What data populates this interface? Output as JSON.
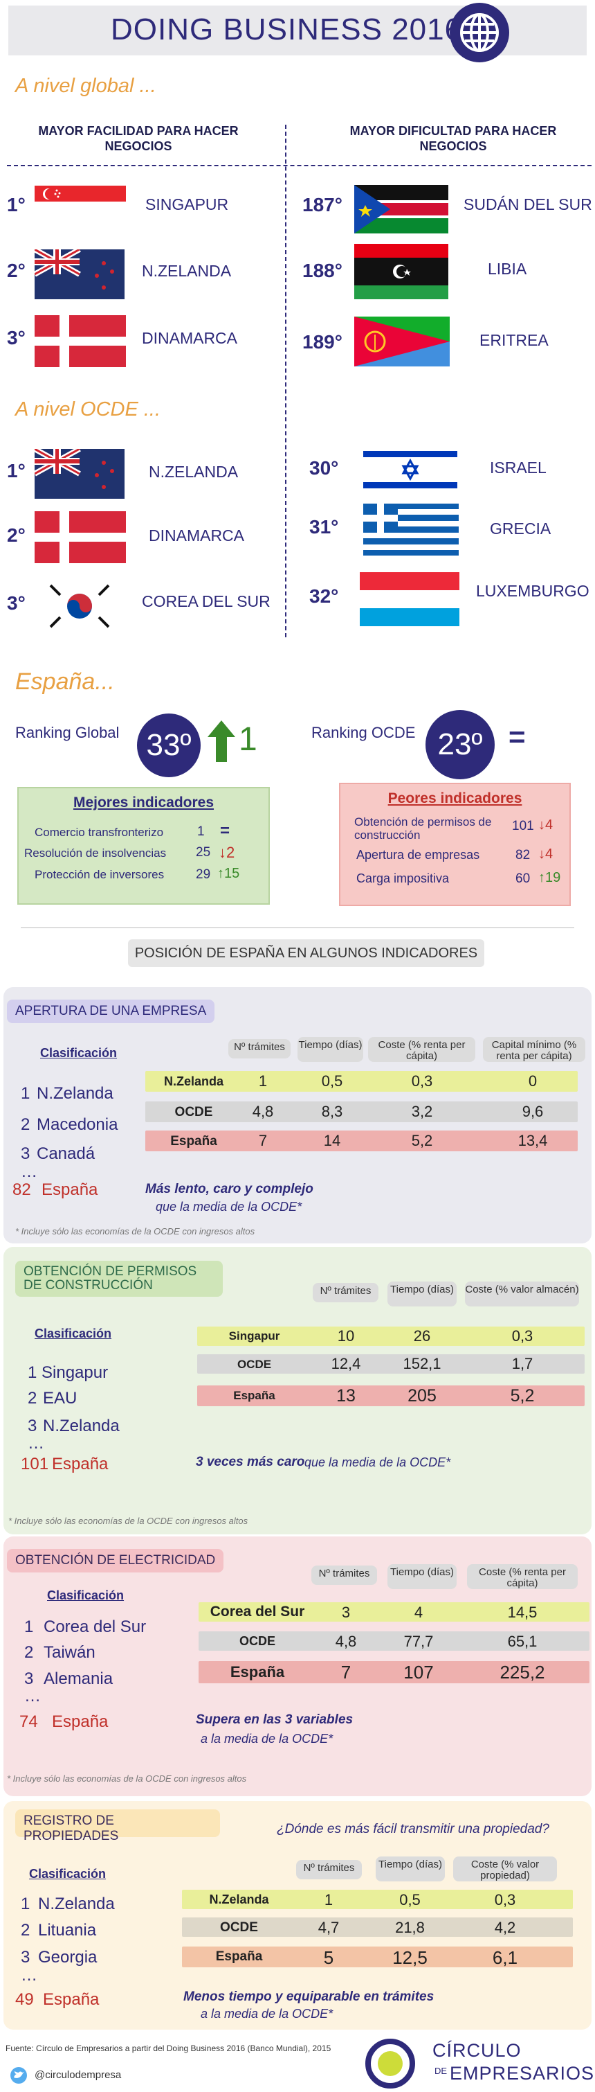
{
  "header": {
    "title": "DOING BUSINESS 2016"
  },
  "global": {
    "heading": "A nivel global ...",
    "best_title": "MAYOR FACILIDAD PARA HACER NEGOCIOS",
    "worst_title": "MAYOR DIFICULTAD PARA HACER NEGOCIOS",
    "best": [
      {
        "rank": "1°",
        "country": "SINGAPUR"
      },
      {
        "rank": "2°",
        "country": "N.ZELANDA"
      },
      {
        "rank": "3°",
        "country": "DINAMARCA"
      }
    ],
    "worst": [
      {
        "rank": "187°",
        "country": "SUDÁN DEL SUR"
      },
      {
        "rank": "188°",
        "country": "LIBIA"
      },
      {
        "rank": "189°",
        "country": "ERITREA"
      }
    ]
  },
  "ocde": {
    "heading": "A nivel OCDE ...",
    "best": [
      {
        "rank": "1°",
        "country": "N.ZELANDA"
      },
      {
        "rank": "2°",
        "country": "DINAMARCA"
      },
      {
        "rank": "3°",
        "country": "COREA DEL SUR"
      }
    ],
    "worst": [
      {
        "rank": "30°",
        "country": "ISRAEL"
      },
      {
        "rank": "31°",
        "country": "GRECIA"
      },
      {
        "rank": "32°",
        "country": "LUXEMBURGO"
      }
    ]
  },
  "spain": {
    "heading": "España...",
    "global_label": "Ranking Global",
    "global_value": "33º",
    "global_change": "1",
    "ocde_label": "Ranking OCDE",
    "ocde_value": "23º",
    "ocde_change": "=",
    "best_title": "Mejores indicadores",
    "best": [
      {
        "label": "Comercio transfronterizo",
        "value": "1",
        "change": "="
      },
      {
        "label": "Resolución de insolvencias",
        "value": "25",
        "change": "↓2"
      },
      {
        "label": "Protección de inversores",
        "value": "29",
        "change": "↑15"
      }
    ],
    "worst_title": "Peores indicadores",
    "worst": [
      {
        "label": "Obtención de permisos de construcción",
        "value": "101",
        "change": "↓4"
      },
      {
        "label": "Apertura de empresas",
        "value": "82",
        "change": "↓4"
      },
      {
        "label": "Carga impositiva",
        "value": "60",
        "change": "↑19"
      }
    ]
  },
  "position_title": "POSICIÓN DE ESPAÑA EN ALGUNOS INDICADORES",
  "apertura": {
    "title": "APERTURA DE UNA EMPRESA",
    "clasif": "Clasificación",
    "list": [
      {
        "n": "1",
        "name": "N.Zelanda"
      },
      {
        "n": "2",
        "name": "Macedonia"
      },
      {
        "n": "3",
        "name": "Canadá"
      },
      {
        "n": "82",
        "name": "España"
      }
    ],
    "headers": [
      "Nº trámites",
      "Tiempo (días)",
      "Coste (% renta per cápita)",
      "Capital mínimo (% renta per cápita)"
    ],
    "rows": [
      {
        "label": "N.Zelanda",
        "values": [
          "1",
          "0,5",
          "0,3",
          "0"
        ]
      },
      {
        "label": "OCDE",
        "values": [
          "4,8",
          "8,3",
          "3,2",
          "9,6"
        ]
      },
      {
        "label": "España",
        "values": [
          "7",
          "14",
          "5,2",
          "13,4"
        ]
      }
    ],
    "comment": "Más lento, caro y complejo",
    "comment2": "que la media de la OCDE*",
    "note": "* Incluye sólo las economías de la OCDE con ingresos altos"
  },
  "permisos": {
    "title": "OBTENCIÓN DE PERMISOS DE CONSTRUCCIÓN",
    "clasif": "Clasificación",
    "list": [
      {
        "n": "1",
        "name": "Singapur"
      },
      {
        "n": "2",
        "name": "EAU"
      },
      {
        "n": "3",
        "name": "N.Zelanda"
      },
      {
        "n": "101",
        "name": "España"
      }
    ],
    "headers": [
      "Nº trámites",
      "Tiempo (días)",
      "Coste (% valor almacén)"
    ],
    "rows": [
      {
        "label": "Singapur",
        "values": [
          "10",
          "26",
          "0,3"
        ]
      },
      {
        "label": "OCDE",
        "values": [
          "12,4",
          "152,1",
          "1,7"
        ]
      },
      {
        "label": "España",
        "values": [
          "13",
          "205",
          "5,2"
        ]
      }
    ],
    "comment": "3 veces más caro",
    "comment2": "que la media de la OCDE*",
    "note": "* Incluye sólo las economías de la OCDE con ingresos altos"
  },
  "electricidad": {
    "title": "OBTENCIÓN DE ELECTRICIDAD",
    "clasif": "Clasificación",
    "list": [
      {
        "n": "1",
        "name": "Corea del Sur"
      },
      {
        "n": "2",
        "name": "Taiwán"
      },
      {
        "n": "3",
        "name": "Alemania"
      },
      {
        "n": "74",
        "name": "España"
      }
    ],
    "headers": [
      "Nº trámites",
      "Tiempo (días)",
      "Coste (% renta per cápita)"
    ],
    "rows": [
      {
        "label": "Corea del Sur",
        "values": [
          "3",
          "4",
          "14,5"
        ]
      },
      {
        "label": "OCDE",
        "values": [
          "4,8",
          "77,7",
          "65,1"
        ]
      },
      {
        "label": "España",
        "values": [
          "7",
          "107",
          "225,2"
        ]
      }
    ],
    "comment": "Supera en las 3 variables",
    "comment2": "a la media de la OCDE*",
    "note": "* Incluye sólo las economías de la OCDE con ingresos altos"
  },
  "propiedades": {
    "title": "REGISTRO DE PROPIEDADES",
    "question": "¿Dónde es más fácil transmitir una propiedad?",
    "clasif": "Clasificación",
    "list": [
      {
        "n": "1",
        "name": "N.Zelanda"
      },
      {
        "n": "2",
        "name": "Lituania"
      },
      {
        "n": "3",
        "name": "Georgia"
      },
      {
        "n": "49",
        "name": "España"
      }
    ],
    "headers": [
      "Nº trámites",
      "Tiempo (días)",
      "Coste (% valor propiedad)"
    ],
    "rows": [
      {
        "label": "N.Zelanda",
        "values": [
          "1",
          "0,5",
          "0,3"
        ]
      },
      {
        "label": "OCDE",
        "values": [
          "4,7",
          "21,8",
          "4,2"
        ]
      },
      {
        "label": "España",
        "values": [
          "5",
          "12,5",
          "6,1"
        ]
      }
    ],
    "comment": "Menos tiempo y equiparable en trámites",
    "comment2": "a la media de la OCDE*"
  },
  "footer": {
    "source": "Fuente: Círculo de Empresarios a partir del Doing Business 2016 (Banco Mundial), 2015",
    "twitter": "@circulodempresa",
    "logo_line1": "CÍRCULO",
    "logo_de": "DE",
    "logo_line2": "EMPRESARIOS"
  },
  "colors": {
    "navy": "#2e2a7a",
    "orange": "#e8a042",
    "green": "#3a8a2a",
    "red": "#c0302a"
  }
}
